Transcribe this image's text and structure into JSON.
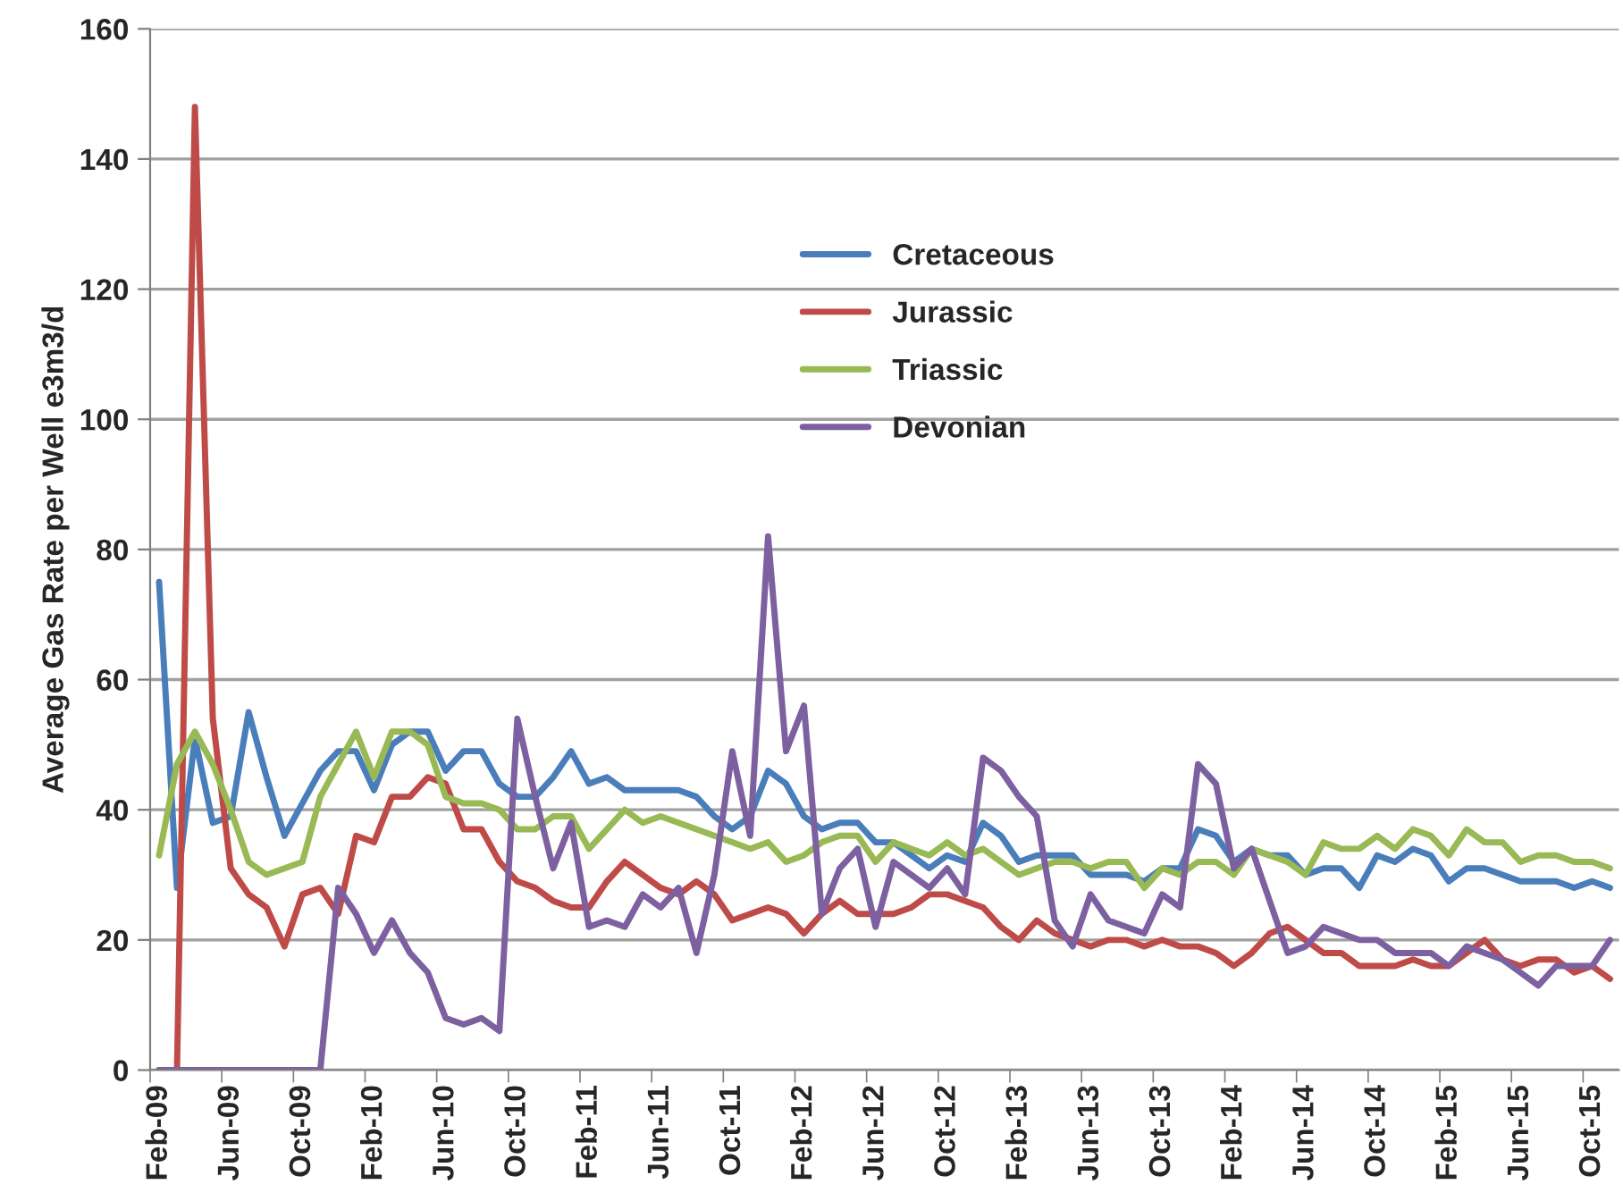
{
  "chart_data": {
    "type": "line",
    "ylabel": "Average Gas Rate per Well e3m3/d",
    "categories": [
      "Feb-09",
      null,
      null,
      null,
      "Jun-09",
      null,
      null,
      null,
      "Oct-09",
      null,
      null,
      null,
      "Feb-10",
      null,
      null,
      null,
      "Jun-10",
      null,
      null,
      null,
      "Oct-10",
      null,
      null,
      null,
      "Feb-11",
      null,
      null,
      null,
      "Jun-11",
      null,
      null,
      null,
      "Oct-11",
      null,
      null,
      null,
      "Feb-12",
      null,
      null,
      null,
      "Jun-12",
      null,
      null,
      null,
      "Oct-12",
      null,
      null,
      null,
      "Feb-13",
      null,
      null,
      null,
      "Jun-13",
      null,
      null,
      null,
      "Oct-13",
      null,
      null,
      null,
      "Feb-14",
      null,
      null,
      null,
      "Jun-14",
      null,
      null,
      null,
      "Oct-14",
      null,
      null,
      null,
      "Feb-15",
      null,
      null,
      null,
      "Jun-15",
      null,
      null,
      null,
      "Oct-15",
      null
    ],
    "series": [
      {
        "name": "Cretaceous",
        "color": "#4a7ebb",
        "values": [
          75,
          28,
          51,
          38,
          39,
          55,
          45,
          36,
          41,
          46,
          49,
          49,
          43,
          50,
          52,
          52,
          46,
          49,
          49,
          44,
          42,
          42,
          45,
          49,
          44,
          45,
          43,
          43,
          43,
          43,
          42,
          39,
          37,
          39,
          46,
          44,
          39,
          37,
          38,
          38,
          35,
          35,
          33,
          31,
          33,
          32,
          38,
          36,
          32,
          33,
          33,
          33,
          30,
          30,
          30,
          29,
          31,
          31,
          37,
          36,
          32,
          34,
          33,
          33,
          30,
          31,
          31,
          28,
          33,
          32,
          34,
          33,
          29,
          31,
          31,
          30,
          29,
          29,
          29,
          28,
          29,
          28
        ]
      },
      {
        "name": "Jurassic",
        "color": "#be4b48",
        "values": [
          0,
          0,
          148,
          54,
          31,
          27,
          25,
          19,
          27,
          28,
          24,
          36,
          35,
          42,
          42,
          45,
          44,
          37,
          37,
          32,
          29,
          28,
          26,
          25,
          25,
          29,
          32,
          30,
          28,
          27,
          29,
          27,
          23,
          24,
          25,
          24,
          21,
          24,
          26,
          24,
          24,
          24,
          25,
          27,
          27,
          26,
          25,
          22,
          20,
          23,
          21,
          20,
          19,
          20,
          20,
          19,
          20,
          19,
          19,
          18,
          16,
          18,
          21,
          22,
          20,
          18,
          18,
          16,
          16,
          16,
          17,
          16,
          16,
          18,
          20,
          17,
          16,
          17,
          17,
          15,
          16,
          14
        ]
      },
      {
        "name": "Triassic",
        "color": "#98b954",
        "values": [
          33,
          47,
          52,
          47,
          40,
          32,
          30,
          31,
          32,
          42,
          47,
          52,
          45,
          52,
          52,
          50,
          42,
          41,
          41,
          40,
          37,
          37,
          39,
          39,
          34,
          37,
          40,
          38,
          39,
          38,
          37,
          36,
          35,
          34,
          35,
          32,
          33,
          35,
          36,
          36,
          32,
          35,
          34,
          33,
          35,
          33,
          34,
          32,
          30,
          31,
          32,
          32,
          31,
          32,
          32,
          28,
          31,
          30,
          32,
          32,
          30,
          34,
          33,
          32,
          30,
          35,
          34,
          34,
          36,
          34,
          37,
          36,
          33,
          37,
          35,
          35,
          32,
          33,
          33,
          32,
          32,
          31
        ]
      },
      {
        "name": "Devonian",
        "color": "#7d60a0",
        "values": [
          0,
          0,
          0,
          0,
          0,
          0,
          0,
          0,
          0,
          0,
          28,
          24,
          18,
          23,
          18,
          15,
          8,
          7,
          8,
          6,
          54,
          42,
          31,
          38,
          22,
          23,
          22,
          27,
          25,
          28,
          18,
          30,
          49,
          36,
          82,
          49,
          56,
          24,
          31,
          34,
          22,
          32,
          30,
          28,
          31,
          27,
          48,
          46,
          42,
          39,
          23,
          19,
          27,
          23,
          22,
          21,
          27,
          25,
          47,
          44,
          31,
          34,
          26,
          18,
          19,
          22,
          21,
          20,
          20,
          18,
          18,
          18,
          16,
          19,
          18,
          17,
          15,
          13,
          16,
          16,
          16,
          20
        ]
      }
    ],
    "ylim": [
      0,
      160
    ],
    "yticks": [
      0,
      20,
      40,
      60,
      80,
      100,
      120,
      140,
      160
    ],
    "grid": "y",
    "legend": "top center"
  }
}
